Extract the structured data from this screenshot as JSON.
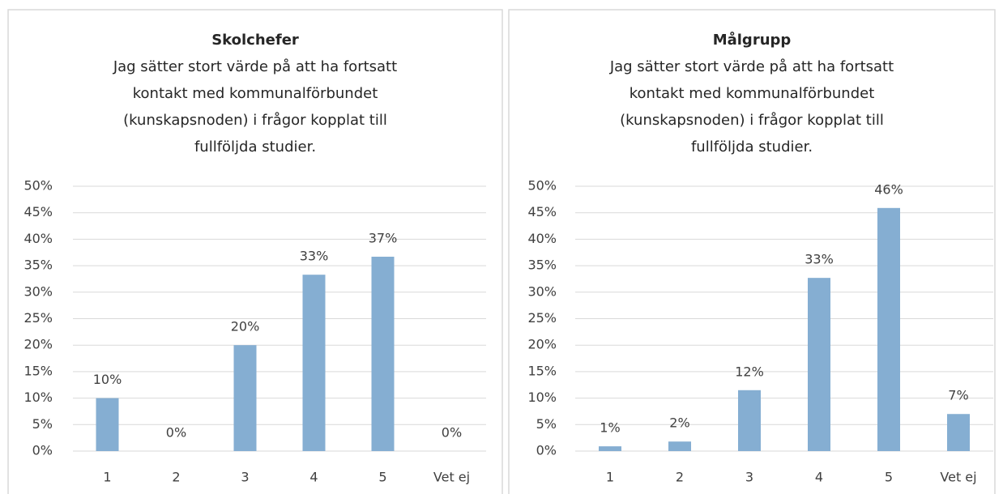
{
  "chart_data": [
    {
      "type": "bar",
      "title": "Skolchefer",
      "subtitle": [
        "Jag sätter stort värde på att ha fortsatt",
        "kontakt med kommunalförbundet",
        "(kunskapsnoden) i frågor kopplat till",
        "fullföljda studier."
      ],
      "categories": [
        "1",
        "2",
        "3",
        "4",
        "5",
        "Vet ej"
      ],
      "values": [
        10,
        0,
        20,
        33.3,
        36.7,
        0
      ],
      "value_labels": [
        "10%",
        "0%",
        "20%",
        "33%",
        "37%",
        "0%"
      ],
      "color": "#85aed2",
      "grid": true,
      "ylim": [
        0,
        50
      ],
      "yticks": [
        {
          "value": 0,
          "label": "0%"
        },
        {
          "value": 5,
          "label": "5%"
        },
        {
          "value": 10,
          "label": "10%"
        },
        {
          "value": 15,
          "label": "15%"
        },
        {
          "value": 20,
          "label": "20%"
        },
        {
          "value": 25,
          "label": "25%"
        },
        {
          "value": 30,
          "label": "30%"
        },
        {
          "value": 35,
          "label": "35%"
        },
        {
          "value": 40,
          "label": "40%"
        },
        {
          "value": 45,
          "label": "45%"
        },
        {
          "value": 50,
          "label": "50%"
        }
      ]
    },
    {
      "type": "bar",
      "title": "Målgrupp",
      "subtitle": [
        "Jag sätter stort värde på att ha fortsatt",
        "kontakt med kommunalförbundet",
        "(kunskapsnoden) i frågor kopplat till",
        "fullföljda studier."
      ],
      "categories": [
        "1",
        "2",
        "3",
        "4",
        "5",
        "Vet ej"
      ],
      "values": [
        0.9,
        1.8,
        11.5,
        32.7,
        45.9,
        7.0
      ],
      "value_labels": [
        "1%",
        "2%",
        "12%",
        "33%",
        "46%",
        "7%"
      ],
      "color": "#85aed2",
      "grid": true,
      "ylim": [
        0,
        50
      ],
      "yticks": [
        {
          "value": 0,
          "label": "0%"
        },
        {
          "value": 5,
          "label": "5%"
        },
        {
          "value": 10,
          "label": "10%"
        },
        {
          "value": 15,
          "label": "15%"
        },
        {
          "value": 20,
          "label": "20%"
        },
        {
          "value": 25,
          "label": "25%"
        },
        {
          "value": 30,
          "label": "30%"
        },
        {
          "value": 35,
          "label": "35%"
        },
        {
          "value": 40,
          "label": "40%"
        },
        {
          "value": 45,
          "label": "45%"
        },
        {
          "value": 50,
          "label": "50%"
        }
      ]
    }
  ]
}
